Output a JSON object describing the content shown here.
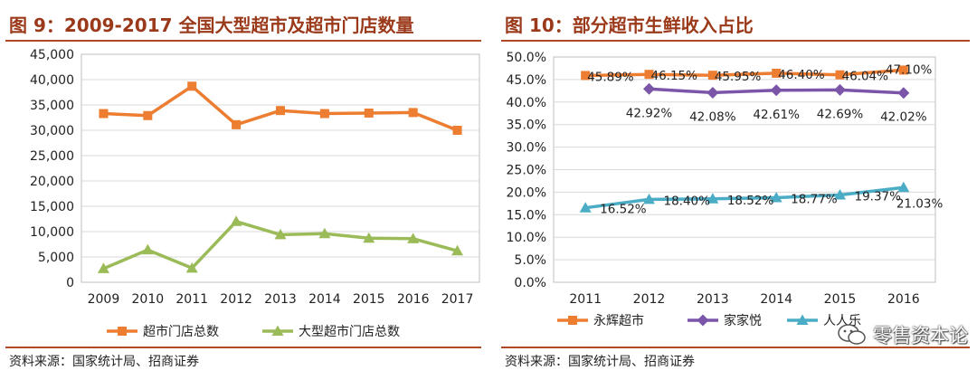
{
  "charts": [
    {
      "figure_label": "图 9：",
      "title": "2009-2017 全国大型超市及超市门店数量",
      "source": "资料来源：国家统计局、招商证券"
    },
    {
      "figure_label": "图 10：",
      "title": "部分超市生鲜收入占比",
      "source": "资料来源：国家统计局、招商证券"
    }
  ],
  "watermark": "零售资本论",
  "colors": {
    "orange": "#ed7d31",
    "green": "#9bbb59",
    "purple": "#7a55a8",
    "teal": "#4bacc6",
    "title": "#9b3a1b",
    "rule": "#b04a26"
  },
  "chart_data": [
    {
      "type": "line",
      "title": "2009-2017 全国大型超市及超市门店数量",
      "categories": [
        "2009",
        "2010",
        "2011",
        "2012",
        "2013",
        "2014",
        "2015",
        "2016",
        "2017"
      ],
      "series": [
        {
          "name": "超市门店总数",
          "values": [
            33300,
            32900,
            38700,
            31100,
            33900,
            33300,
            33400,
            33500,
            30000
          ],
          "color": "#ed7d31",
          "marker": "square"
        },
        {
          "name": "大型超市门店总数",
          "values": [
            2700,
            6400,
            2800,
            12000,
            9400,
            9600,
            8700,
            8600,
            6200
          ],
          "color": "#9bbb59",
          "marker": "triangle"
        }
      ],
      "ylim": [
        0,
        45000
      ],
      "y_ticks": [
        "0",
        "5,000",
        "10,000",
        "15,000",
        "20,000",
        "25,000",
        "30,000",
        "35,000",
        "40,000",
        "45,000"
      ],
      "grid": true,
      "legend": "bottom"
    },
    {
      "type": "line",
      "title": "部分超市生鲜收入占比",
      "categories": [
        "2011",
        "2012",
        "2013",
        "2014",
        "2015",
        "2016"
      ],
      "series": [
        {
          "name": "永辉超市",
          "values": [
            45.89,
            46.15,
            45.95,
            46.4,
            46.04,
            47.1
          ],
          "labels": [
            "45.89%",
            "46.15%",
            "45.95%",
            "46.40%",
            "46.04%",
            "47.10%"
          ],
          "color": "#ed7d31",
          "marker": "square"
        },
        {
          "name": "家家悦",
          "values": [
            null,
            42.92,
            42.08,
            42.61,
            42.69,
            42.02
          ],
          "labels": [
            null,
            "42.92%",
            "42.08%",
            "42.61%",
            "42.69%",
            "42.02%"
          ],
          "color": "#7a55a8",
          "marker": "diamond"
        },
        {
          "name": "人人乐",
          "values": [
            16.52,
            18.4,
            18.52,
            18.77,
            19.37,
            21.03
          ],
          "labels": [
            "16.52%",
            "18.40%",
            "18.52%",
            "18.77%",
            "19.37%",
            "21.03%"
          ],
          "color": "#4bacc6",
          "marker": "triangle"
        }
      ],
      "ylim": [
        0,
        50
      ],
      "y_ticks": [
        "0.0%",
        "5.0%",
        "10.0%",
        "15.0%",
        "20.0%",
        "25.0%",
        "30.0%",
        "35.0%",
        "40.0%",
        "45.0%",
        "50.0%"
      ],
      "grid": true,
      "legend": "bottom"
    }
  ]
}
